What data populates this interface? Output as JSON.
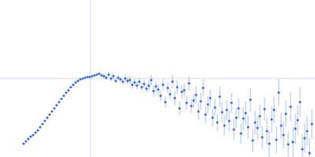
{
  "chart_data": {
    "type": "scatter",
    "color": "#3a6bc8",
    "marker": "circle",
    "tick_labels": false,
    "grid": false,
    "xlim": [
      0,
      400
    ],
    "ylim": [
      0,
      200
    ],
    "reference_x": 115,
    "reference_y": 100,
    "x": [
      30,
      33,
      36,
      39,
      42,
      45,
      48,
      51,
      54,
      57,
      60,
      63,
      66,
      69,
      72,
      75,
      78,
      81,
      84,
      87,
      90,
      93,
      96,
      99,
      102,
      105,
      108,
      111,
      114,
      117,
      120,
      123,
      126,
      129,
      132,
      135,
      138,
      141,
      144,
      147,
      150,
      153,
      156,
      159,
      162,
      165,
      168,
      171,
      174,
      177,
      180,
      183,
      186,
      189,
      192,
      195,
      198,
      201,
      204,
      207,
      210,
      213,
      216,
      219,
      222,
      225,
      228,
      231,
      234,
      237,
      240,
      243,
      246,
      249,
      252,
      255,
      258,
      261,
      264,
      267,
      270,
      273,
      276,
      279,
      282,
      285,
      288,
      291,
      294,
      297,
      300,
      303,
      306,
      309,
      312,
      315,
      318,
      321,
      324,
      327,
      330,
      333,
      336,
      339,
      342,
      345,
      348,
      351,
      354,
      357,
      360,
      363,
      366,
      369,
      372,
      375,
      378,
      381,
      384,
      387,
      390,
      393,
      396
    ],
    "values": [
      17,
      20,
      23,
      26,
      28,
      31,
      34,
      38,
      42,
      46,
      50,
      54,
      58,
      62,
      66,
      70,
      74,
      78,
      82,
      85,
      89,
      92,
      95,
      97,
      99,
      100,
      101,
      102,
      102,
      103,
      104,
      105,
      106,
      104,
      103,
      101,
      105,
      100,
      103,
      97,
      101,
      99,
      96,
      100,
      97,
      98,
      92,
      95,
      91,
      96,
      89,
      93,
      87,
      91,
      98,
      84,
      90,
      86,
      78,
      92,
      70,
      88,
      80,
      96,
      75,
      89,
      62,
      83,
      85,
      69,
      94,
      65,
      72,
      79,
      58,
      71,
      88,
      54,
      67,
      75,
      50,
      63,
      44,
      77,
      57,
      40,
      60,
      46,
      69,
      35,
      50,
      62,
      30,
      49,
      56,
      38,
      73,
      21,
      44,
      37,
      52,
      25,
      61,
      33,
      17,
      48,
      60,
      22,
      82,
      40,
      28,
      55,
      16,
      64,
      19,
      36,
      47,
      70,
      10,
      24,
      33,
      5,
      42
    ],
    "errors": [
      1,
      1,
      1,
      1,
      1,
      1,
      1,
      1,
      1,
      1,
      1,
      1,
      1,
      1,
      1,
      1,
      1,
      1,
      1,
      1,
      1,
      1,
      1,
      1,
      1,
      1,
      1,
      1,
      1,
      1,
      1,
      1,
      1,
      3,
      3,
      3,
      3,
      3,
      3,
      3,
      3,
      3,
      3,
      5,
      5,
      5,
      5,
      5,
      5,
      5,
      5,
      5,
      5,
      7,
      7,
      7,
      7,
      7,
      7,
      7,
      7,
      7,
      7,
      9,
      9,
      9,
      9,
      9,
      9,
      9,
      9,
      9,
      9,
      11,
      11,
      11,
      11,
      11,
      11,
      11,
      11,
      11,
      11,
      13,
      13,
      13,
      13,
      13,
      13,
      13,
      13,
      13,
      13,
      15,
      15,
      15,
      15,
      15,
      15,
      15,
      15,
      15,
      15,
      17,
      17,
      17,
      17,
      17,
      17,
      17,
      17,
      17,
      17,
      19,
      19,
      19,
      19,
      19,
      19,
      19,
      19,
      19,
      19
    ]
  }
}
